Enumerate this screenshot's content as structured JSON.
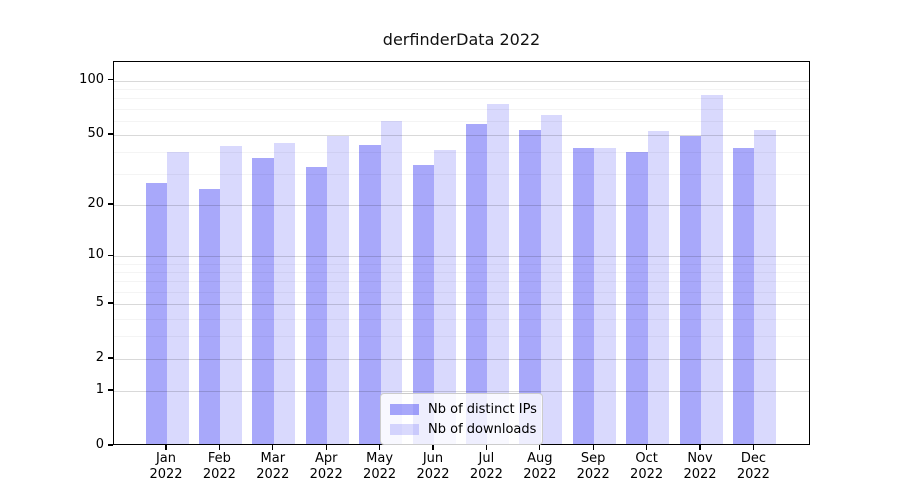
{
  "chart_data": {
    "type": "bar",
    "title": "derfinderData 2022",
    "categories": [
      "Jan",
      "Feb",
      "Mar",
      "Apr",
      "May",
      "Jun",
      "Jul",
      "Aug",
      "Sep",
      "Oct",
      "Nov",
      "Dec"
    ],
    "year_label": "2022",
    "series": [
      {
        "name": "Nb of distinct IPs",
        "color": "rgba(15,15,240,0.36)",
        "values": [
          26,
          24,
          36,
          32,
          43,
          33,
          56,
          52,
          41,
          39,
          48,
          41
        ]
      },
      {
        "name": "Nb of downloads",
        "color": "rgba(15,15,240,0.155)",
        "values": [
          39,
          42,
          44,
          48,
          58,
          40,
          72,
          63,
          41,
          51,
          81,
          52
        ]
      }
    ],
    "y_axis": {
      "scale": "log1p",
      "ticks": [
        0,
        1,
        2,
        5,
        10,
        20,
        50,
        100
      ],
      "minor_gridlines": [
        3,
        4,
        6,
        7,
        8,
        9,
        30,
        40,
        60,
        70,
        80,
        90
      ],
      "ylim": [
        0,
        127
      ]
    },
    "xlabel": "",
    "ylabel": "",
    "grid": true,
    "legend_position": "lower center"
  }
}
